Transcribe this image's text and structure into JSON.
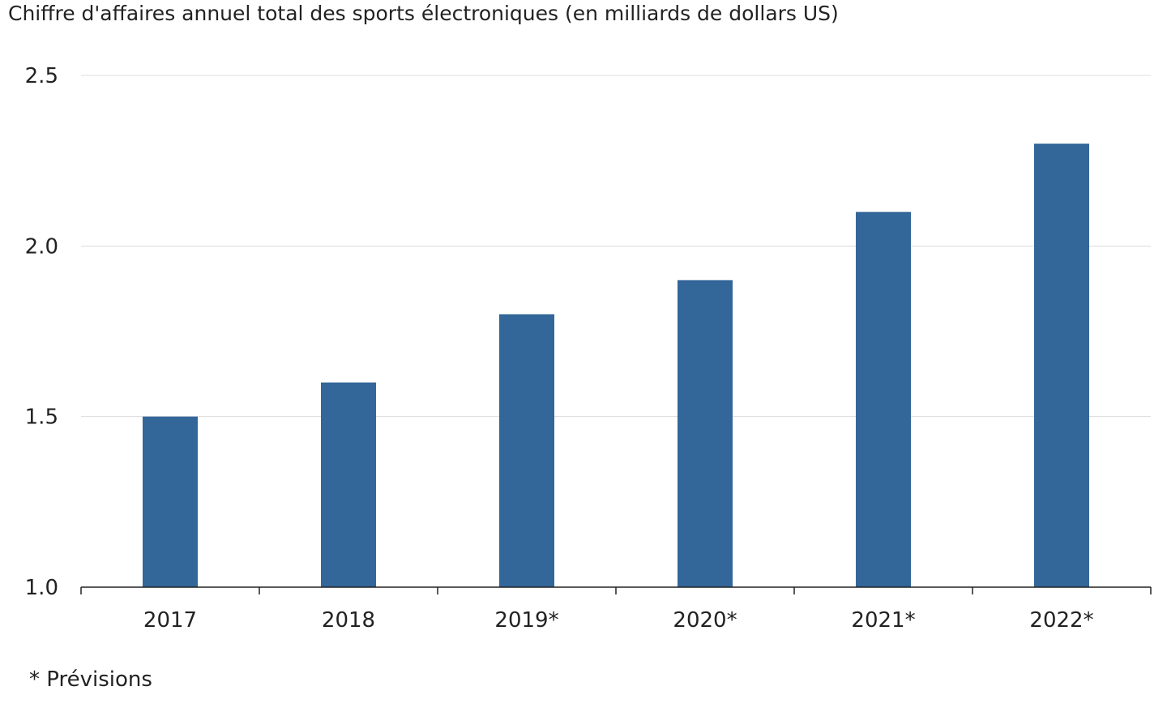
{
  "chart_data": {
    "type": "bar",
    "title": "Chiffre d'affaires annuel total des sports électroniques (en milliards de dollars US)",
    "categories": [
      "2017",
      "2018",
      "2019*",
      "2020*",
      "2021*",
      "2022*"
    ],
    "values": [
      1.5,
      1.6,
      1.8,
      1.9,
      2.1,
      2.3
    ],
    "xlabel": "",
    "ylabel": "",
    "ylim": [
      1.0,
      2.5
    ],
    "yticks": [
      "1.0",
      "1.5",
      "2.0",
      "2.5"
    ],
    "grid": true,
    "footnote": "* Prévisions",
    "bar_color": "#336699"
  }
}
